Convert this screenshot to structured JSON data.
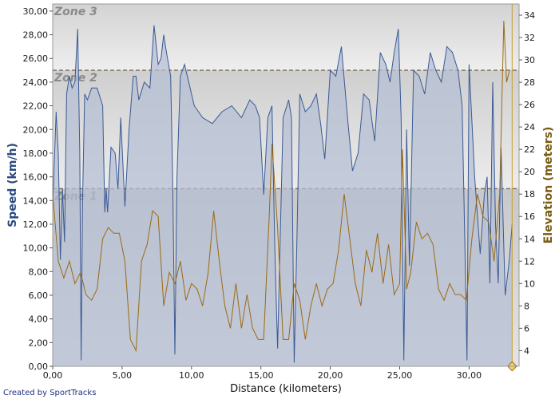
{
  "chart_data": {
    "type": "area",
    "xlabel": "Distance (kilometers)",
    "ylabel": "Speed (km/h)",
    "y2label": "Elevation (meters)",
    "credit": "Created by SportTracks",
    "xlim": [
      0,
      33.6
    ],
    "ylim": [
      0,
      30.6
    ],
    "y2lim": [
      2.6,
      35
    ],
    "x_ticks": [
      "0,00",
      "5,00",
      "10,00",
      "15,00",
      "20,00",
      "25,00",
      "30,00"
    ],
    "y_ticks": [
      "0,00",
      "2,00",
      "4,00",
      "6,00",
      "8,00",
      "10,00",
      "12,00",
      "14,00",
      "16,00",
      "18,00",
      "20,00",
      "22,00",
      "24,00",
      "26,00",
      "28,00",
      "30,00"
    ],
    "y2_ticks": [
      "4",
      "6",
      "8",
      "10",
      "12",
      "14",
      "16",
      "18",
      "20",
      "22",
      "24",
      "26",
      "28",
      "30",
      "32",
      "34"
    ],
    "zones": [
      {
        "label": "Zone 1",
        "from": 0,
        "to": 15
      },
      {
        "label": "Zone 2",
        "from": 15,
        "to": 25
      },
      {
        "label": "Zone 3",
        "from": 25,
        "to": 30.6
      }
    ],
    "series": [
      {
        "name": "Speed",
        "color": "#3a5a95",
        "fill": "#b4bed3",
        "x": [
          0,
          0.25,
          0.4,
          0.55,
          0.7,
          0.85,
          1.0,
          1.2,
          1.4,
          1.6,
          1.8,
          1.95,
          2.05,
          2.15,
          2.3,
          2.5,
          2.8,
          3.2,
          3.6,
          3.75,
          3.85,
          3.95,
          4.2,
          4.5,
          4.7,
          4.9,
          5.2,
          5.5,
          5.8,
          6.0,
          6.2,
          6.6,
          7.0,
          7.3,
          7.6,
          7.8,
          8.0,
          8.2,
          8.5,
          8.65,
          8.8,
          8.95,
          9.2,
          9.5,
          9.8,
          10.2,
          10.8,
          11.5,
          12.2,
          12.9,
          13.6,
          14.2,
          14.6,
          14.9,
          15.2,
          15.5,
          15.8,
          16.0,
          16.2,
          16.6,
          17.0,
          17.2,
          17.4,
          17.6,
          17.8,
          18.2,
          18.6,
          19.0,
          19.3,
          19.6,
          20.0,
          20.4,
          20.8,
          21.2,
          21.6,
          22.0,
          22.4,
          22.8,
          23.2,
          23.6,
          24.0,
          24.3,
          24.6,
          24.9,
          25.1,
          25.3,
          25.5,
          25.7,
          26.0,
          26.4,
          26.8,
          27.2,
          27.6,
          28.0,
          28.4,
          28.8,
          29.2,
          29.5,
          29.7,
          29.85,
          30.0,
          30.4,
          30.8,
          31.1,
          31.3,
          31.5,
          31.7,
          31.9,
          32.1,
          32.3,
          32.6,
          32.9,
          33.1
        ],
        "y": [
          13.5,
          21.5,
          18.0,
          9.0,
          15.0,
          10.5,
          23.0,
          24.5,
          23.5,
          24.0,
          28.5,
          18.0,
          0.5,
          14.0,
          23.0,
          22.5,
          23.5,
          23.5,
          22.0,
          13.0,
          15.0,
          13.0,
          18.5,
          18.0,
          15.0,
          21.0,
          13.5,
          20.0,
          24.5,
          24.5,
          22.5,
          24.0,
          23.5,
          28.8,
          25.5,
          26.0,
          28.0,
          26.5,
          24.5,
          15.5,
          1.0,
          16.0,
          24.5,
          25.5,
          24.0,
          22.0,
          21.0,
          20.5,
          21.5,
          22.0,
          21.0,
          22.5,
          22.0,
          21.0,
          14.5,
          21.0,
          22.0,
          10.0,
          1.5,
          21.0,
          22.5,
          21.0,
          0.3,
          11.0,
          23.0,
          21.5,
          22.0,
          23.0,
          20.5,
          17.5,
          25.0,
          24.5,
          27.0,
          21.5,
          16.5,
          18.0,
          23.0,
          22.5,
          19.0,
          26.5,
          25.5,
          24.0,
          26.5,
          28.5,
          21.0,
          0.5,
          20.0,
          8.5,
          25.0,
          24.5,
          23.0,
          26.5,
          25.0,
          24.0,
          27.0,
          26.5,
          25.0,
          22.0,
          10.0,
          0.5,
          25.5,
          16.0,
          9.5,
          14.5,
          16.0,
          7.0,
          24.0,
          12.0,
          7.0,
          18.5,
          6.0,
          9.0,
          12.0
        ]
      },
      {
        "name": "Elevation",
        "color": "#9b6a14",
        "x": [
          0,
          0.4,
          0.8,
          1.2,
          1.6,
          2.0,
          2.4,
          2.8,
          3.2,
          3.6,
          4.0,
          4.4,
          4.8,
          5.2,
          5.6,
          6.0,
          6.4,
          6.8,
          7.2,
          7.6,
          8.0,
          8.4,
          8.8,
          9.2,
          9.6,
          10.0,
          10.4,
          10.8,
          11.2,
          11.6,
          12.0,
          12.4,
          12.8,
          13.2,
          13.6,
          14.0,
          14.4,
          14.8,
          15.2,
          15.6,
          15.8,
          16.2,
          16.6,
          17.0,
          17.4,
          17.8,
          18.2,
          18.6,
          19.0,
          19.4,
          19.8,
          20.2,
          20.6,
          21.0,
          21.4,
          21.8,
          22.2,
          22.6,
          23.0,
          23.4,
          23.8,
          24.2,
          24.6,
          25.0,
          25.2,
          25.5,
          25.8,
          26.2,
          26.6,
          27.0,
          27.4,
          27.8,
          28.2,
          28.6,
          29.0,
          29.4,
          29.8,
          30.2,
          30.6,
          31.0,
          31.4,
          31.8,
          32.2,
          32.5,
          32.7,
          32.9
        ],
        "y": [
          18.0,
          12.0,
          10.5,
          12.0,
          10.0,
          11.0,
          9.0,
          8.5,
          9.5,
          14.0,
          15.0,
          14.5,
          14.5,
          12.0,
          5.0,
          4.0,
          12.0,
          13.5,
          16.5,
          16.0,
          8.0,
          11.0,
          10.0,
          12.0,
          8.5,
          10.0,
          9.5,
          8.0,
          11.0,
          16.5,
          12.0,
          8.0,
          6.0,
          10.0,
          6.0,
          9.0,
          6.0,
          5.0,
          5.0,
          16.0,
          22.5,
          15.0,
          5.0,
          5.0,
          10.0,
          8.5,
          5.0,
          8.0,
          10.0,
          8.0,
          9.5,
          10.0,
          13.0,
          18.0,
          14.0,
          10.0,
          8.0,
          13.0,
          11.0,
          14.5,
          10.0,
          13.5,
          9.0,
          10.0,
          22.0,
          9.5,
          11.0,
          15.5,
          14.0,
          14.5,
          13.5,
          9.5,
          8.5,
          10.0,
          9.0,
          9.0,
          8.5,
          14.0,
          18.0,
          16.0,
          15.5,
          12.0,
          18.0,
          33.5,
          28.0,
          29.0
        ]
      }
    ]
  }
}
